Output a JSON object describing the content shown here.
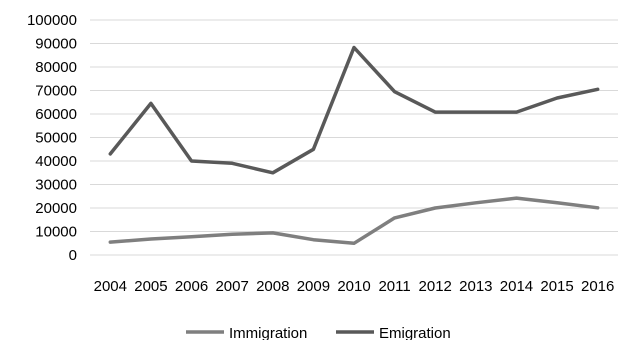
{
  "chart_data": {
    "type": "line",
    "x": [
      "2004",
      "2005",
      "2006",
      "2007",
      "2008",
      "2009",
      "2010",
      "2011",
      "2012",
      "2013",
      "2014",
      "2015",
      "2016"
    ],
    "ylim": [
      0,
      100000
    ],
    "yticks": [
      0,
      10000,
      20000,
      30000,
      40000,
      50000,
      60000,
      70000,
      80000,
      90000,
      100000
    ],
    "grid": true,
    "legend_position": "bottom",
    "series": [
      {
        "name": "Immigration",
        "color": "#7f7f7f",
        "values": [
          5500,
          6800,
          7800,
          8800,
          9400,
          6500,
          5000,
          15800,
          20000,
          22200,
          24200,
          22200,
          20100
        ]
      },
      {
        "name": "Emigration",
        "color": "#595959",
        "values": [
          43000,
          64500,
          40000,
          39000,
          35000,
          45000,
          88300,
          69500,
          60800,
          60800,
          60800,
          66800,
          70500
        ]
      }
    ]
  }
}
